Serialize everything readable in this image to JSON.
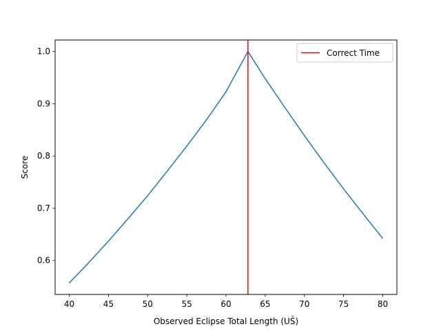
{
  "chart_data": {
    "type": "line",
    "title": "",
    "xlabel": "Observed Eclipse Total Length (UŠ)",
    "ylabel": "Score",
    "xlim": [
      38.2,
      81.8
    ],
    "ylim": [
      0.535,
      1.022
    ],
    "xticks": [
      40,
      45,
      50,
      55,
      60,
      65,
      70,
      75,
      80
    ],
    "xtick_labels": [
      "40",
      "45",
      "50",
      "55",
      "60",
      "65",
      "70",
      "75",
      "80"
    ],
    "yticks": [
      0.6,
      0.7,
      0.8,
      0.9,
      1.0
    ],
    "ytick_labels": [
      "0.6",
      "0.7",
      "0.8",
      "0.9",
      "1.0"
    ],
    "grid": false,
    "legend": {
      "position": "top-right",
      "entries": [
        {
          "label": "Correct Time",
          "color": "#ff0000",
          "kind": "line"
        }
      ]
    },
    "series": [
      {
        "color": "#1f77b4",
        "x": [
          40,
          42.5,
          45,
          47.5,
          50,
          52.5,
          55,
          57.5,
          60,
          62.8,
          65,
          67.5,
          70,
          72.5,
          75,
          77.5,
          80
        ],
        "y": [
          0.557,
          0.596,
          0.637,
          0.68,
          0.724,
          0.771,
          0.819,
          0.869,
          0.923,
          1.0,
          0.948,
          0.893,
          0.839,
          0.787,
          0.737,
          0.689,
          0.642
        ]
      }
    ],
    "vlines": [
      {
        "x": 62.8,
        "color": "#ff0000",
        "label": "Correct Time"
      }
    ]
  }
}
